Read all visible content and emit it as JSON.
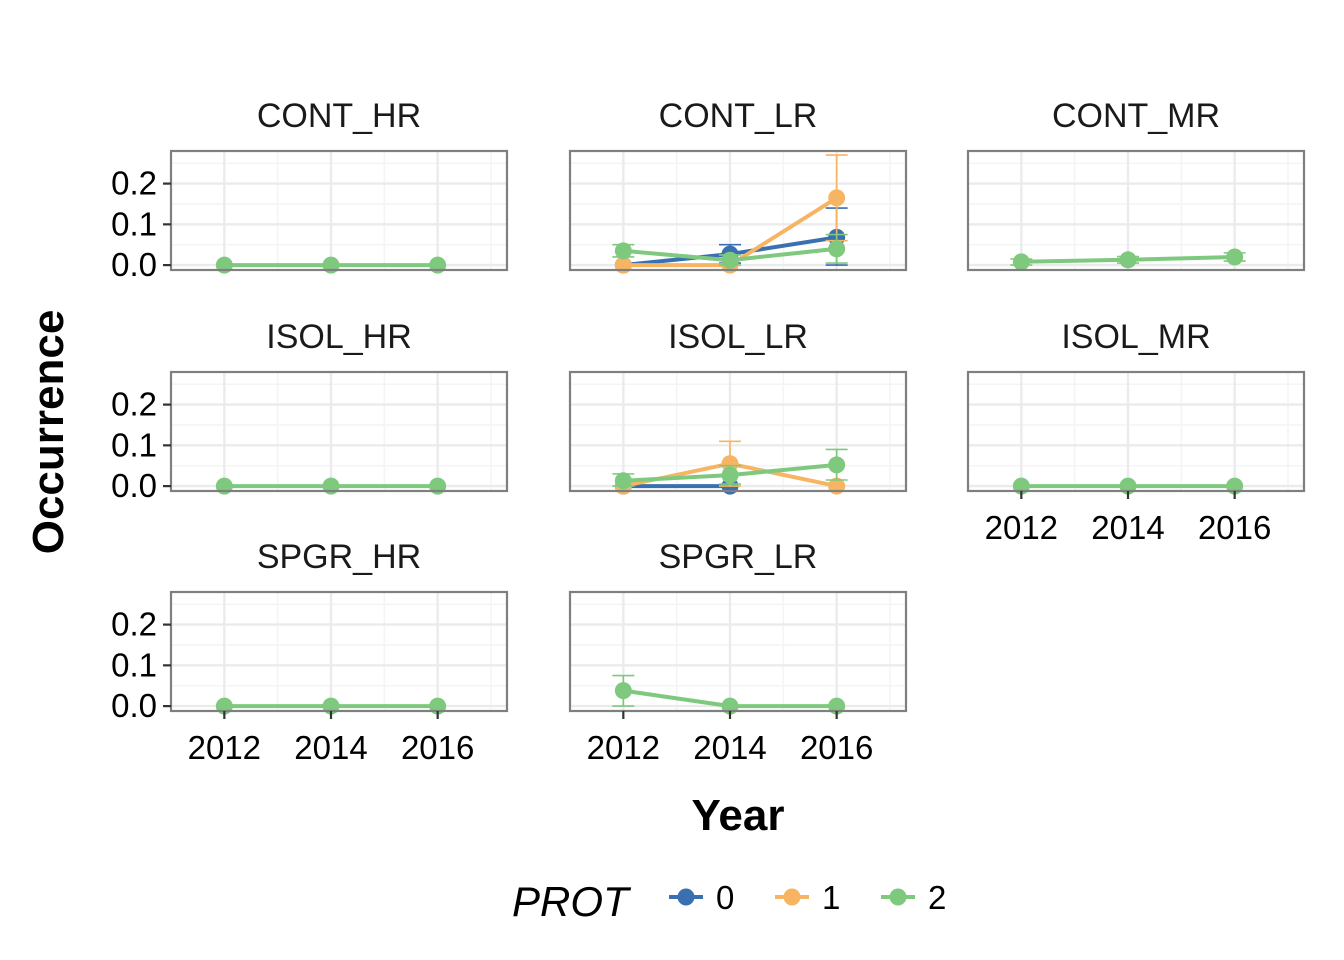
{
  "chart_data": {
    "type": "line",
    "facets": [
      "CONT_HR",
      "CONT_LR",
      "CONT_MR",
      "ISOL_HR",
      "ISOL_LR",
      "ISOL_MR",
      "SPGR_HR",
      "SPGR_LR"
    ],
    "xlabel": "Year",
    "ylabel": "Occurrence",
    "x_ticks": [
      "2012",
      "2014",
      "2016"
    ],
    "y_ticks": [
      "0.0",
      "0.1",
      "0.2"
    ],
    "xlim": [
      2011,
      2017.3
    ],
    "ylim": [
      -0.012,
      0.28
    ],
    "grid": true,
    "legend": {
      "title": "PROT",
      "position": "bottom",
      "entries": [
        {
          "label": "0",
          "color": "#3A6FB0"
        },
        {
          "label": "1",
          "color": "#F7B462"
        },
        {
          "label": "2",
          "color": "#7FC97F"
        }
      ]
    },
    "panels": [
      {
        "facet": "CONT_HR",
        "series": [
          {
            "name": "2",
            "x": [
              2012,
              2014,
              2016
            ],
            "y": [
              0.0,
              0.0,
              0.0
            ],
            "ymin": [
              0.0,
              0.0,
              0.0
            ],
            "ymax": [
              0.0,
              0.0,
              0.0
            ]
          }
        ]
      },
      {
        "facet": "CONT_LR",
        "series": [
          {
            "name": "0",
            "x": [
              2012,
              2014,
              2016
            ],
            "y": [
              0.0,
              0.027,
              0.068
            ],
            "ymin": [
              0.0,
              0.005,
              0.0
            ],
            "ymax": [
              0.0,
              0.05,
              0.14
            ]
          },
          {
            "name": "1",
            "x": [
              2012,
              2014,
              2016
            ],
            "y": [
              0.0,
              0.0,
              0.165
            ],
            "ymin": [
              0.0,
              0.0,
              0.06
            ],
            "ymax": [
              0.0,
              0.0,
              0.27
            ]
          },
          {
            "name": "2",
            "x": [
              2012,
              2014,
              2016
            ],
            "y": [
              0.035,
              0.012,
              0.04
            ],
            "ymin": [
              0.02,
              0.0,
              0.005
            ],
            "ymax": [
              0.05,
              0.025,
              0.075
            ]
          }
        ]
      },
      {
        "facet": "CONT_MR",
        "series": [
          {
            "name": "2",
            "x": [
              2012,
              2014,
              2016
            ],
            "y": [
              0.008,
              0.013,
              0.02
            ],
            "ymin": [
              0.0,
              0.005,
              0.01
            ],
            "ymax": [
              0.015,
              0.021,
              0.03
            ]
          }
        ]
      },
      {
        "facet": "ISOL_HR",
        "series": [
          {
            "name": "2",
            "x": [
              2012,
              2014,
              2016
            ],
            "y": [
              0.0,
              0.0,
              0.0
            ],
            "ymin": [
              0.0,
              0.0,
              0.0
            ],
            "ymax": [
              0.0,
              0.0,
              0.0
            ]
          }
        ]
      },
      {
        "facet": "ISOL_LR",
        "series": [
          {
            "name": "0",
            "x": [
              2012,
              2014,
              2016
            ],
            "y": [
              0.0,
              0.0,
              null
            ],
            "ymin": [
              0.0,
              0.0,
              null
            ],
            "ymax": [
              0.0,
              0.0,
              null
            ]
          },
          {
            "name": "1",
            "x": [
              2012,
              2014,
              2016
            ],
            "y": [
              0.0,
              0.055,
              0.0
            ],
            "ymin": [
              0.0,
              0.0,
              0.0
            ],
            "ymax": [
              0.0,
              0.11,
              0.0
            ]
          },
          {
            "name": "2",
            "x": [
              2012,
              2014,
              2016
            ],
            "y": [
              0.013,
              0.027,
              0.052
            ],
            "ymin": [
              0.0,
              0.005,
              0.015
            ],
            "ymax": [
              0.03,
              0.05,
              0.09
            ]
          }
        ]
      },
      {
        "facet": "ISOL_MR",
        "series": [
          {
            "name": "2",
            "x": [
              2012,
              2014,
              2016
            ],
            "y": [
              0.0,
              0.0,
              0.0
            ],
            "ymin": [
              0.0,
              0.0,
              0.0
            ],
            "ymax": [
              0.0,
              0.0,
              0.0
            ]
          }
        ]
      },
      {
        "facet": "SPGR_HR",
        "series": [
          {
            "name": "2",
            "x": [
              2012,
              2014,
              2016
            ],
            "y": [
              0.0,
              0.0,
              0.0
            ],
            "ymin": [
              0.0,
              0.0,
              0.0
            ],
            "ymax": [
              0.0,
              0.0,
              0.0
            ]
          }
        ]
      },
      {
        "facet": "SPGR_LR",
        "series": [
          {
            "name": "2",
            "x": [
              2012,
              2014,
              2016
            ],
            "y": [
              0.038,
              0.0,
              0.0
            ],
            "ymin": [
              0.0,
              0.0,
              0.0
            ],
            "ymax": [
              0.075,
              0.0,
              0.0
            ]
          }
        ]
      }
    ]
  }
}
